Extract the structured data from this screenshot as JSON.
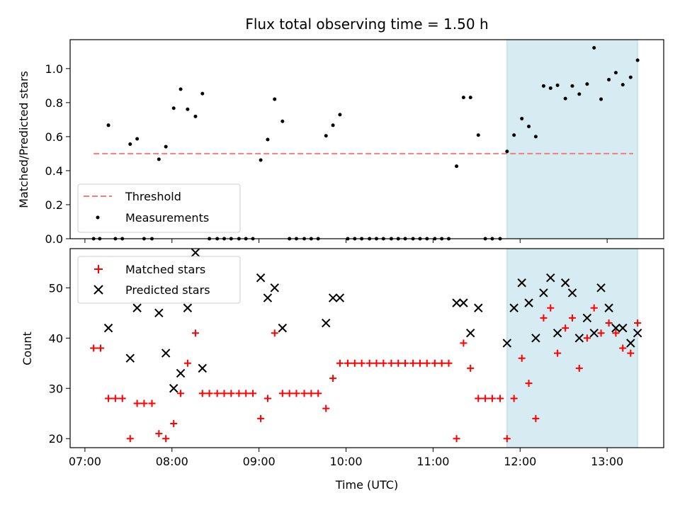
{
  "title": "Flux total observing time = 1.50 h",
  "chart_data": [
    {
      "type": "scatter",
      "panel": "top",
      "ylabel": "Matched/Predicted stars",
      "ylim": [
        0,
        1.17
      ],
      "yticks": [
        "0.0",
        "0.2",
        "0.4",
        "0.6",
        "0.8",
        "1.0"
      ],
      "ytick_values": [
        0,
        0.2,
        0.4,
        0.6,
        0.8,
        1.0
      ],
      "xlim_hours": [
        6.83,
        13.65
      ],
      "shaded_region_hours": [
        11.85,
        13.35
      ],
      "shaded_color": "#add8e6",
      "threshold": {
        "label": "Threshold",
        "value": 0.5,
        "x_range_hours": [
          7.1,
          13.3
        ],
        "color": "#f08080"
      },
      "legend": {
        "position": "lower-left",
        "entries": [
          "Threshold",
          "Measurements"
        ]
      },
      "series": [
        {
          "name": "Measurements",
          "color": "#000000",
          "points": [
            [
              7.1,
              0
            ],
            [
              7.17,
              0
            ],
            [
              7.27,
              0.667
            ],
            [
              7.35,
              0
            ],
            [
              7.43,
              0
            ],
            [
              7.52,
              0.556
            ],
            [
              7.6,
              0.587
            ],
            [
              7.68,
              0
            ],
            [
              7.77,
              0
            ],
            [
              7.85,
              0.467
            ],
            [
              7.93,
              0.541
            ],
            [
              8.02,
              0.767
            ],
            [
              8.1,
              0.879
            ],
            [
              8.18,
              0.761
            ],
            [
              8.27,
              0.719
            ],
            [
              8.35,
              0.853
            ],
            [
              8.43,
              0
            ],
            [
              8.52,
              0
            ],
            [
              8.6,
              0
            ],
            [
              8.68,
              0
            ],
            [
              8.77,
              0
            ],
            [
              8.85,
              0
            ],
            [
              8.93,
              0
            ],
            [
              9.02,
              0.462
            ],
            [
              9.1,
              0.583
            ],
            [
              9.18,
              0.82
            ],
            [
              9.27,
              0.69
            ],
            [
              9.35,
              0
            ],
            [
              9.43,
              0
            ],
            [
              9.52,
              0
            ],
            [
              9.6,
              0
            ],
            [
              9.68,
              0
            ],
            [
              9.77,
              0.605
            ],
            [
              9.85,
              0.667
            ],
            [
              9.93,
              0.729
            ],
            [
              10.02,
              0
            ],
            [
              10.1,
              0
            ],
            [
              10.18,
              0
            ],
            [
              10.27,
              0
            ],
            [
              10.35,
              0
            ],
            [
              10.43,
              0
            ],
            [
              10.52,
              0
            ],
            [
              10.6,
              0
            ],
            [
              10.68,
              0
            ],
            [
              10.77,
              0
            ],
            [
              10.85,
              0
            ],
            [
              10.93,
              0
            ],
            [
              11.02,
              0
            ],
            [
              11.1,
              0
            ],
            [
              11.18,
              0
            ],
            [
              11.27,
              0.426
            ],
            [
              11.35,
              0.83
            ],
            [
              11.43,
              0.83
            ],
            [
              11.52,
              0.609
            ],
            [
              11.6,
              0
            ],
            [
              11.68,
              0
            ],
            [
              11.77,
              0
            ],
            [
              11.85,
              0.513
            ],
            [
              11.93,
              0.609
            ],
            [
              12.02,
              0.706
            ],
            [
              12.1,
              0.66
            ],
            [
              12.18,
              0.6
            ],
            [
              12.27,
              0.898
            ],
            [
              12.35,
              0.885
            ],
            [
              12.43,
              0.902
            ],
            [
              12.52,
              0.824
            ],
            [
              12.6,
              0.898
            ],
            [
              12.68,
              0.85
            ],
            [
              12.77,
              0.909
            ],
            [
              12.85,
              1.122
            ],
            [
              12.93,
              0.82
            ],
            [
              13.02,
              0.935
            ],
            [
              13.1,
              0.976
            ],
            [
              13.18,
              0.905
            ],
            [
              13.27,
              0.949
            ],
            [
              13.35,
              1.049
            ]
          ]
        }
      ]
    },
    {
      "type": "scatter",
      "panel": "bottom",
      "ylabel": "Count",
      "xlabel": "Time (UTC)",
      "ylim": [
        18.2,
        57.8
      ],
      "yticks": [
        "20",
        "30",
        "40",
        "50"
      ],
      "ytick_values": [
        20,
        30,
        40,
        50
      ],
      "xlim_hours": [
        6.83,
        13.65
      ],
      "xticks": [
        "07:00",
        "08:00",
        "09:00",
        "10:00",
        "11:00",
        "12:00",
        "13:00"
      ],
      "xtick_values_hours": [
        7,
        8,
        9,
        10,
        11,
        12,
        13
      ],
      "shaded_region_hours": [
        11.85,
        13.35
      ],
      "shaded_color": "#add8e6",
      "legend": {
        "position": "top-left",
        "entries": [
          "Matched stars",
          "Predicted stars"
        ]
      },
      "series": [
        {
          "name": "Matched stars",
          "marker": "+",
          "color": "#ff0000",
          "points": [
            [
              7.1,
              38
            ],
            [
              7.18,
              38
            ],
            [
              7.27,
              28
            ],
            [
              7.35,
              28
            ],
            [
              7.43,
              28
            ],
            [
              7.52,
              20
            ],
            [
              7.6,
              27
            ],
            [
              7.68,
              27
            ],
            [
              7.77,
              27
            ],
            [
              7.85,
              21
            ],
            [
              7.93,
              20
            ],
            [
              8.02,
              23
            ],
            [
              8.1,
              29
            ],
            [
              8.18,
              35
            ],
            [
              8.27,
              41
            ],
            [
              8.35,
              29
            ],
            [
              8.43,
              29
            ],
            [
              8.52,
              29
            ],
            [
              8.6,
              29
            ],
            [
              8.68,
              29
            ],
            [
              8.77,
              29
            ],
            [
              8.85,
              29
            ],
            [
              8.93,
              29
            ],
            [
              9.02,
              24
            ],
            [
              9.1,
              28
            ],
            [
              9.18,
              41
            ],
            [
              9.27,
              29
            ],
            [
              9.35,
              29
            ],
            [
              9.43,
              29
            ],
            [
              9.52,
              29
            ],
            [
              9.6,
              29
            ],
            [
              9.68,
              29
            ],
            [
              9.77,
              26
            ],
            [
              9.85,
              32
            ],
            [
              9.93,
              35
            ],
            [
              10.02,
              35
            ],
            [
              10.1,
              35
            ],
            [
              10.18,
              35
            ],
            [
              10.27,
              35
            ],
            [
              10.35,
              35
            ],
            [
              10.43,
              35
            ],
            [
              10.52,
              35
            ],
            [
              10.6,
              35
            ],
            [
              10.68,
              35
            ],
            [
              10.77,
              35
            ],
            [
              10.85,
              35
            ],
            [
              10.93,
              35
            ],
            [
              11.02,
              35
            ],
            [
              11.1,
              35
            ],
            [
              11.18,
              35
            ],
            [
              11.27,
              20
            ],
            [
              11.35,
              39
            ],
            [
              11.43,
              34
            ],
            [
              11.52,
              28
            ],
            [
              11.6,
              28
            ],
            [
              11.68,
              28
            ],
            [
              11.77,
              28
            ],
            [
              11.85,
              20
            ],
            [
              11.93,
              28
            ],
            [
              12.02,
              36
            ],
            [
              12.1,
              31
            ],
            [
              12.18,
              24
            ],
            [
              12.27,
              44
            ],
            [
              12.35,
              46
            ],
            [
              12.43,
              37
            ],
            [
              12.52,
              42
            ],
            [
              12.6,
              44
            ],
            [
              12.68,
              34
            ],
            [
              12.77,
              40
            ],
            [
              12.85,
              46
            ],
            [
              12.93,
              41
            ],
            [
              13.02,
              43
            ],
            [
              13.1,
              41
            ],
            [
              13.18,
              38
            ],
            [
              13.27,
              37
            ],
            [
              13.35,
              43
            ]
          ]
        },
        {
          "name": "Predicted stars",
          "marker": "x",
          "color": "#000000",
          "points": [
            [
              7.27,
              42
            ],
            [
              7.52,
              36
            ],
            [
              7.6,
              46
            ],
            [
              7.85,
              45
            ],
            [
              7.93,
              37
            ],
            [
              8.02,
              30
            ],
            [
              8.1,
              33
            ],
            [
              8.18,
              46
            ],
            [
              8.27,
              57
            ],
            [
              8.35,
              34
            ],
            [
              9.02,
              52
            ],
            [
              9.1,
              48
            ],
            [
              9.18,
              50
            ],
            [
              9.27,
              42
            ],
            [
              9.77,
              43
            ],
            [
              9.85,
              48
            ],
            [
              9.93,
              48
            ],
            [
              11.27,
              47
            ],
            [
              11.35,
              47
            ],
            [
              11.43,
              41
            ],
            [
              11.52,
              46
            ],
            [
              11.85,
              39
            ],
            [
              11.93,
              46
            ],
            [
              12.02,
              51
            ],
            [
              12.1,
              47
            ],
            [
              12.18,
              40
            ],
            [
              12.27,
              49
            ],
            [
              12.35,
              52
            ],
            [
              12.43,
              41
            ],
            [
              12.52,
              51
            ],
            [
              12.6,
              49
            ],
            [
              12.68,
              40
            ],
            [
              12.77,
              44
            ],
            [
              12.85,
              41
            ],
            [
              12.93,
              50
            ],
            [
              13.02,
              46
            ],
            [
              13.1,
              42
            ],
            [
              13.18,
              42
            ],
            [
              13.27,
              39
            ],
            [
              13.35,
              41
            ]
          ]
        }
      ]
    }
  ]
}
